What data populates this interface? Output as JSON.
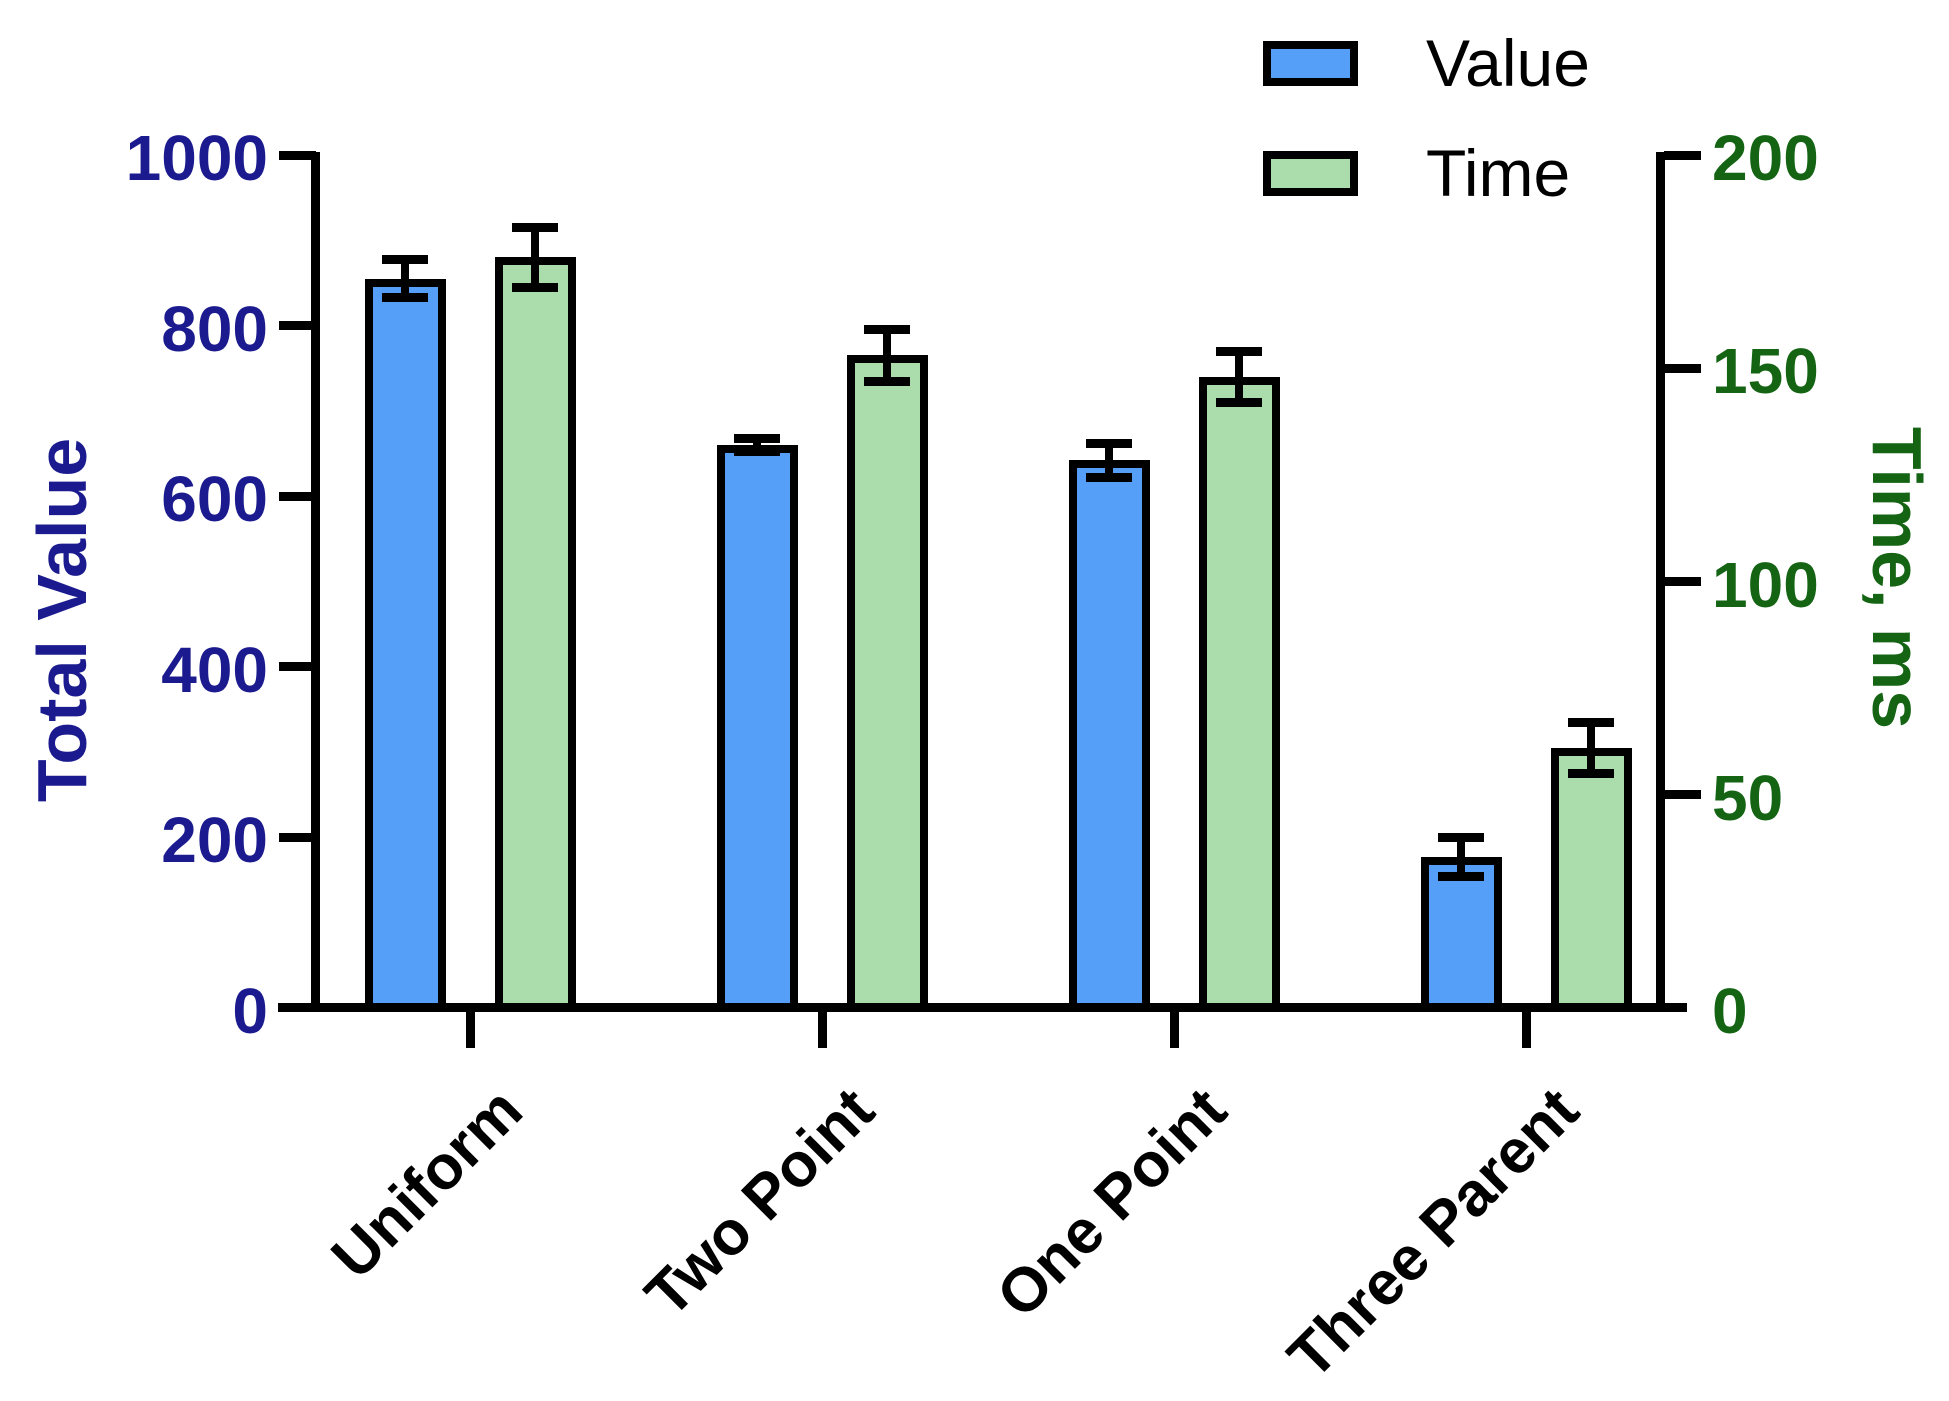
{
  "chart_data": {
    "type": "bar",
    "categories": [
      "Uniform",
      "Two Point",
      "One Point",
      "Three Parent"
    ],
    "series": [
      {
        "name": "Value",
        "axis": "left",
        "color": "#559ff8",
        "values": [
          855,
          660,
          642,
          177
        ],
        "errors": [
          22,
          8,
          20,
          23
        ]
      },
      {
        "name": "Time",
        "axis": "right",
        "color": "#abdcab",
        "values": [
          176,
          153,
          148,
          61
        ],
        "errors": [
          7,
          6,
          6,
          6
        ]
      }
    ],
    "left_axis": {
      "label": "Total Value",
      "color": "#1b1b8f",
      "min": 0,
      "max": 1000,
      "ticks": [
        0,
        200,
        400,
        600,
        800,
        1000
      ]
    },
    "right_axis": {
      "label": "Time, ms",
      "color": "#146414",
      "min": 0,
      "max": 200,
      "ticks": [
        0,
        50,
        100,
        150,
        200
      ]
    },
    "legend": {
      "position": "top-right",
      "entries": [
        "Value",
        "Time"
      ]
    },
    "grid": false,
    "bar_outline_color": "#000000",
    "error_bar_color": "#000000"
  }
}
